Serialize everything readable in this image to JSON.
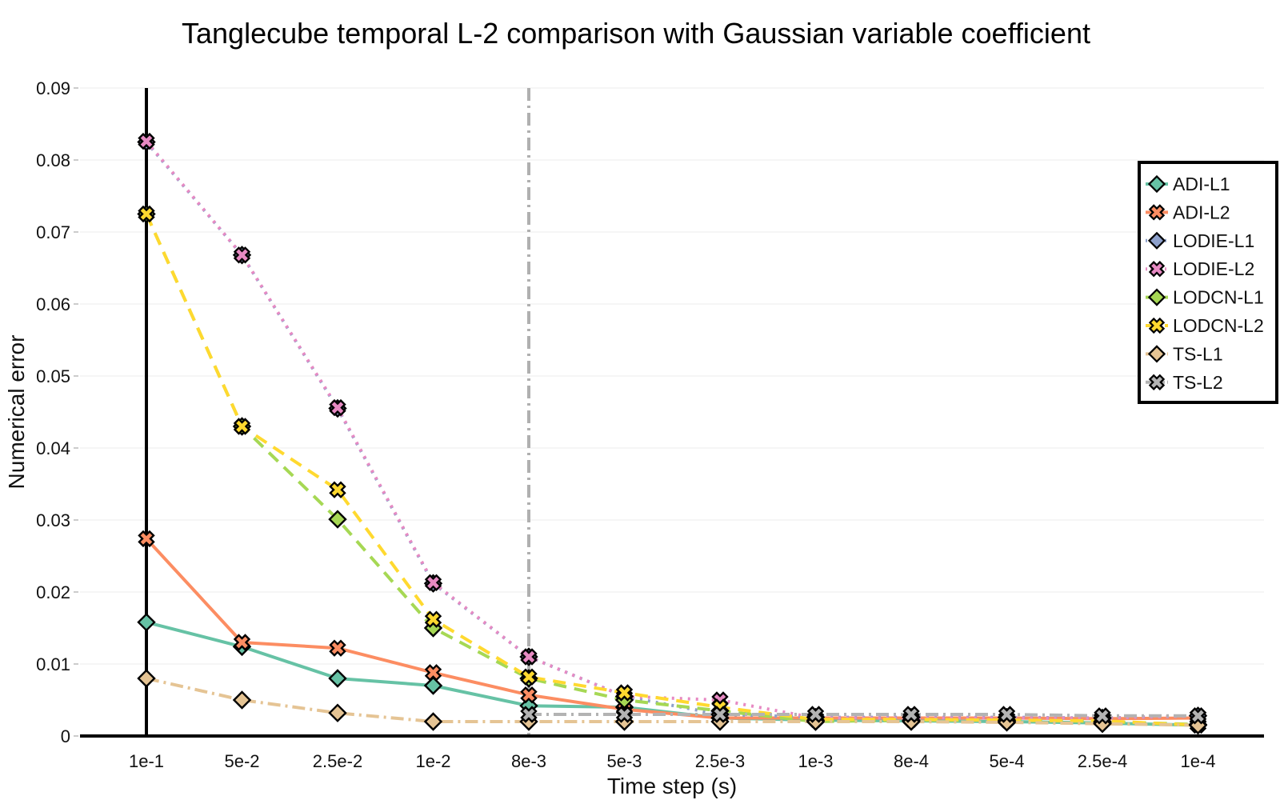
{
  "chart_data": {
    "type": "line",
    "title": "Tanglecube temporal L-2 comparison with Gaussian variable coefficient",
    "xlabel": "Time step (s)",
    "ylabel": "Numerical error",
    "categories": [
      "1e-1",
      "5e-2",
      "2.5e-2",
      "1e-2",
      "8e-3",
      "5e-3",
      "2.5e-3",
      "1e-3",
      "8e-4",
      "5e-4",
      "2.5e-4",
      "1e-4"
    ],
    "ylim": [
      0,
      0.09
    ],
    "yticks": [
      0,
      0.01,
      0.02,
      0.03,
      0.04,
      0.05,
      0.06,
      0.07,
      0.08,
      0.09
    ],
    "ytick_labels": [
      "0",
      "0.01",
      "0.02",
      "0.03",
      "0.04",
      "0.05",
      "0.06",
      "0.07",
      "0.08",
      "0.09"
    ],
    "grid": true,
    "legend_position": "top-right",
    "reference_lines": [
      {
        "x": "8e-3",
        "color": "#b0b0b0",
        "style": "dashdot"
      }
    ],
    "series": [
      {
        "name": "ADI-L1",
        "color": "#66c2a5",
        "marker": "diamond",
        "dash": "solid",
        "values": [
          0.0158,
          0.0124,
          0.008,
          0.007,
          0.0042,
          0.004,
          0.0025,
          0.0022,
          0.0021,
          0.002,
          0.0018,
          0.0015
        ]
      },
      {
        "name": "ADI-L2",
        "color": "#fc8d62",
        "marker": "x",
        "dash": "solid",
        "values": [
          0.0274,
          0.013,
          0.0122,
          0.0088,
          0.0057,
          0.0037,
          0.0025,
          0.0025,
          0.0025,
          0.0025,
          0.0024,
          0.0025
        ]
      },
      {
        "name": "LODIE-L1",
        "color": "#8da0cb",
        "marker": "diamond",
        "dash": "dot",
        "values": [
          0.0825,
          0.0668,
          0.0455,
          0.0212,
          0.011,
          0.0055,
          0.003,
          0.0026,
          0.0026,
          0.0026,
          0.0025,
          0.0028
        ]
      },
      {
        "name": "LODIE-L2",
        "color": "#e78ac3",
        "marker": "x",
        "dash": "dot",
        "values": [
          0.0826,
          0.0668,
          0.0456,
          0.0213,
          0.011,
          0.0055,
          0.005,
          0.0025,
          0.0025,
          0.0025,
          0.0025,
          0.0028
        ]
      },
      {
        "name": "LODCN-L1",
        "color": "#a6d854",
        "marker": "diamond",
        "dash": "dash",
        "values": [
          0.0725,
          0.043,
          0.0301,
          0.015,
          0.008,
          0.005,
          0.0035,
          0.002,
          0.0022,
          0.0022,
          0.002,
          0.0016
        ]
      },
      {
        "name": "LODCN-L2",
        "color": "#ffd92f",
        "marker": "x",
        "dash": "dash",
        "values": [
          0.0725,
          0.043,
          0.0342,
          0.0162,
          0.0082,
          0.006,
          0.004,
          0.0023,
          0.0023,
          0.0022,
          0.0021,
          0.0015
        ]
      },
      {
        "name": "TS-L1",
        "color": "#e5c494",
        "marker": "diamond",
        "dash": "dashdot",
        "values": [
          0.008,
          0.005,
          0.0032,
          0.002,
          0.002,
          0.002,
          0.002,
          0.002,
          0.002,
          0.0019,
          0.0017,
          0.0015
        ]
      },
      {
        "name": "TS-L2",
        "color": "#b3b3b3",
        "marker": "x",
        "dash": "dashdot",
        "values": [
          null,
          null,
          null,
          null,
          0.003,
          0.003,
          0.003,
          0.003,
          0.003,
          0.003,
          0.0028,
          0.0028
        ]
      }
    ]
  }
}
